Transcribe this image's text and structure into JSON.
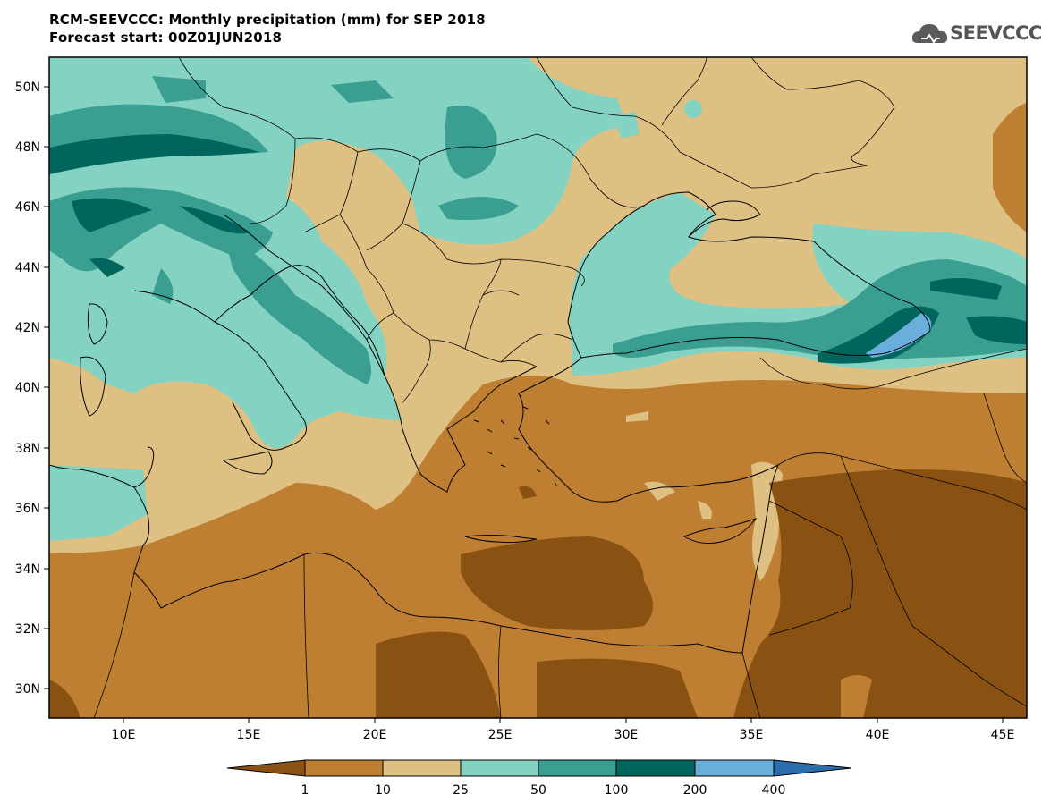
{
  "header": {
    "title_line1": "RCM-SEEVCCC: Monthly precipitation (mm) for SEP 2018",
    "title_line2": "Forecast start: 00Z01JUN2018",
    "logo_text": "SEEVCCC"
  },
  "map": {
    "lon_ticks": [
      "10E",
      "15E",
      "20E",
      "25E",
      "30E",
      "35E",
      "40E",
      "45E"
    ],
    "lat_ticks": [
      "50N",
      "48N",
      "46N",
      "44N",
      "42N",
      "40N",
      "38N",
      "36N",
      "34N",
      "32N",
      "30N"
    ]
  },
  "colorbar": {
    "labels": [
      "1",
      "10",
      "25",
      "50",
      "100",
      "200",
      "400"
    ],
    "colors": [
      "#8a5212",
      "#bf7f33",
      "#dfc083",
      "#84d3c2",
      "#3a9e91",
      "#00655d",
      "#6aaedb",
      "#2a6eab"
    ]
  }
}
